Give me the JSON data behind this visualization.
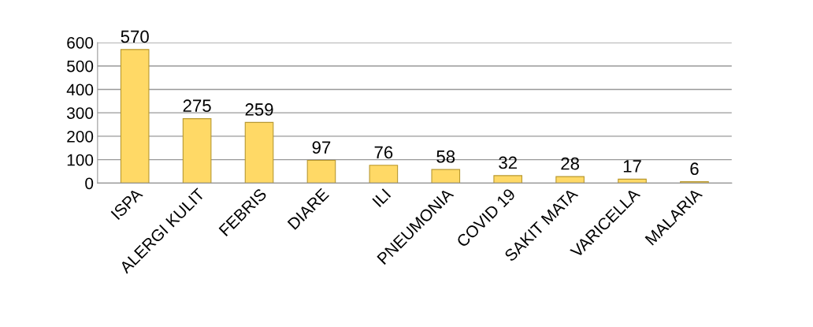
{
  "chart_data": {
    "type": "bar",
    "categories": [
      "ISPA",
      "ALERGI KULIT",
      "FEBRIS",
      "DIARE",
      "ILI",
      "PNEUMONIA",
      "COVID 19",
      "SAKIT MATA",
      "VARICELLA",
      "MALARIA"
    ],
    "values": [
      570,
      275,
      259,
      97,
      76,
      58,
      32,
      28,
      17,
      6
    ],
    "color": "#ffd966",
    "ylim": [
      0,
      600
    ],
    "yticks": [
      0,
      100,
      200,
      300,
      400,
      500,
      600
    ],
    "grid": "y",
    "data_labels": true
  }
}
